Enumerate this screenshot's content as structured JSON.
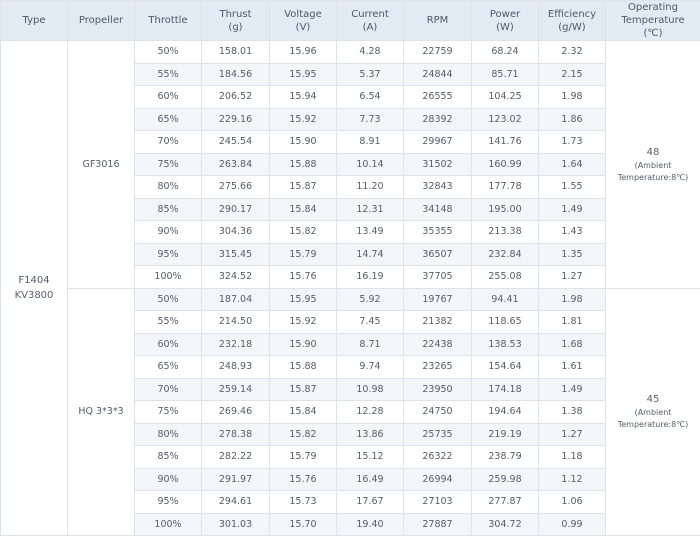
{
  "headers": [
    {
      "key": "type",
      "label": "Type",
      "unit": ""
    },
    {
      "key": "propeller",
      "label": "Propeller",
      "unit": ""
    },
    {
      "key": "throttle",
      "label": "Throttle",
      "unit": ""
    },
    {
      "key": "thrust",
      "label": "Thrust",
      "unit": "(g)"
    },
    {
      "key": "voltage",
      "label": "Voltage",
      "unit": "(V)"
    },
    {
      "key": "current",
      "label": "Current",
      "unit": "(A)"
    },
    {
      "key": "rpm",
      "label": "RPM",
      "unit": ""
    },
    {
      "key": "power",
      "label": "Power",
      "unit": "(W)"
    },
    {
      "key": "efficiency",
      "label": "Efficiency",
      "unit": "(g/W)"
    },
    {
      "key": "temp",
      "label": "Operating Temperature",
      "unit": "(℃)"
    }
  ],
  "motor": {
    "line1": "F1404",
    "line2": "KV3800"
  },
  "groups": [
    {
      "propeller": "GF3016",
      "temperature": "48",
      "temperature_note": "(Ambient Temperature:8℃)",
      "rows": [
        [
          "50%",
          "158.01",
          "15.96",
          "4.28",
          "22759",
          "68.24",
          "2.32"
        ],
        [
          "55%",
          "184.56",
          "15.95",
          "5.37",
          "24844",
          "85.71",
          "2.15"
        ],
        [
          "60%",
          "206.52",
          "15.94",
          "6.54",
          "26555",
          "104.25",
          "1.98"
        ],
        [
          "65%",
          "229.16",
          "15.92",
          "7.73",
          "28392",
          "123.02",
          "1.86"
        ],
        [
          "70%",
          "245.54",
          "15.90",
          "8.91",
          "29967",
          "141.76",
          "1.73"
        ],
        [
          "75%",
          "263.84",
          "15.88",
          "10.14",
          "31502",
          "160.99",
          "1.64"
        ],
        [
          "80%",
          "275.66",
          "15.87",
          "11.20",
          "32843",
          "177.78",
          "1.55"
        ],
        [
          "85%",
          "290.17",
          "15.84",
          "12.31",
          "34148",
          "195.00",
          "1.49"
        ],
        [
          "90%",
          "304.36",
          "15.82",
          "13.49",
          "35355",
          "213.38",
          "1.43"
        ],
        [
          "95%",
          "315.45",
          "15.79",
          "14.74",
          "36507",
          "232.84",
          "1.35"
        ],
        [
          "100%",
          "324.52",
          "15.76",
          "16.19",
          "37705",
          "255.08",
          "1.27"
        ]
      ]
    },
    {
      "propeller": "HQ 3*3*3",
      "temperature": "45",
      "temperature_note": "(Ambient Temperature:8℃)",
      "rows": [
        [
          "50%",
          "187.04",
          "15.95",
          "5.92",
          "19767",
          "94.41",
          "1.98"
        ],
        [
          "55%",
          "214.50",
          "15.92",
          "7.45",
          "21382",
          "118.65",
          "1.81"
        ],
        [
          "60%",
          "232.18",
          "15.90",
          "8.71",
          "22438",
          "138.53",
          "1.68"
        ],
        [
          "65%",
          "248.93",
          "15.88",
          "9.74",
          "23265",
          "154.64",
          "1.61"
        ],
        [
          "70%",
          "259.14",
          "15.87",
          "10.98",
          "23950",
          "174.18",
          "1.49"
        ],
        [
          "75%",
          "269.46",
          "15.84",
          "12.28",
          "24750",
          "194.64",
          "1.38"
        ],
        [
          "80%",
          "278.38",
          "15.82",
          "13.86",
          "25735",
          "219.19",
          "1.27"
        ],
        [
          "85%",
          "282.22",
          "15.79",
          "15.12",
          "26322",
          "238.79",
          "1.18"
        ],
        [
          "90%",
          "291.97",
          "15.76",
          "16.49",
          "26994",
          "259.98",
          "1.12"
        ],
        [
          "95%",
          "294.61",
          "15.73",
          "17.67",
          "27103",
          "277.87",
          "1.06"
        ],
        [
          "100%",
          "301.03",
          "15.70",
          "19.40",
          "27887",
          "304.72",
          "0.99"
        ]
      ]
    }
  ]
}
